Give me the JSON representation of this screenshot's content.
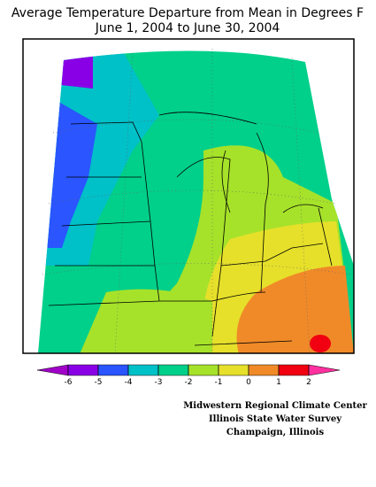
{
  "title": "Average Temperature Departure from Mean in Degrees F",
  "subtitle": "June 1, 2004 to June 30, 2004",
  "legend": {
    "ticks": [
      -6,
      -5,
      -4,
      -3,
      -2,
      -1,
      0,
      1,
      2
    ],
    "under_color": "#a000c8",
    "colors": [
      "#8a00e6",
      "#2a55ff",
      "#00c0c8",
      "#00d08a",
      "#a6e22a",
      "#e6e02a",
      "#f08a28",
      "#f00010"
    ],
    "over_color": "#ff30a0"
  },
  "credits": [
    "Midwestern Regional Climate Center",
    "Illinois State Water Survey",
    "Champaign, Illinois"
  ]
}
